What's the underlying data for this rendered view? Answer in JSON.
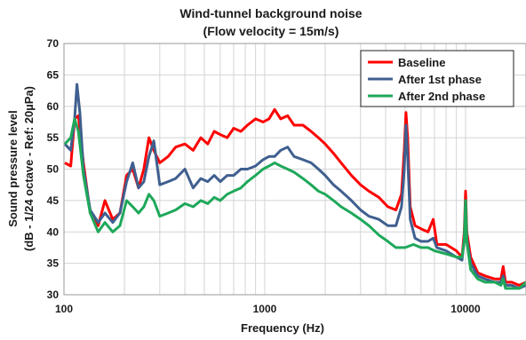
{
  "chart_data": {
    "type": "line",
    "title_lines": [
      "Wind-tunnel background noise",
      "(Flow velocity = 15m/s)"
    ],
    "xlabel": "Frequency (Hz)",
    "ylabel_lines": [
      "Sound pressure level",
      "(dB - 1/24 octave - Ref: 20µPa)"
    ],
    "xscale": "log",
    "xlim": [
      100,
      20000
    ],
    "ylim": [
      30,
      70
    ],
    "yticks": [
      30,
      35,
      40,
      45,
      50,
      55,
      60,
      65,
      70
    ],
    "xticks": [
      100,
      1000,
      10000
    ],
    "xtick_labels": [
      "100",
      "1000",
      "10000"
    ],
    "grid": true,
    "legend_position": "top-right",
    "series": [
      {
        "name": "Baseline",
        "color": "#ff0000",
        "points": [
          [
            101,
            51
          ],
          [
            108,
            50.5
          ],
          [
            113,
            58
          ],
          [
            118,
            58.5
          ],
          [
            125,
            51
          ],
          [
            135,
            43
          ],
          [
            148,
            41
          ],
          [
            160,
            45
          ],
          [
            175,
            42
          ],
          [
            190,
            43
          ],
          [
            205,
            49
          ],
          [
            220,
            50
          ],
          [
            235,
            47
          ],
          [
            250,
            50
          ],
          [
            265,
            55
          ],
          [
            280,
            53
          ],
          [
            300,
            51
          ],
          [
            330,
            52
          ],
          [
            360,
            53.5
          ],
          [
            400,
            54
          ],
          [
            440,
            53
          ],
          [
            480,
            55
          ],
          [
            520,
            54
          ],
          [
            560,
            56
          ],
          [
            600,
            55.5
          ],
          [
            650,
            55
          ],
          [
            700,
            56.5
          ],
          [
            760,
            56
          ],
          [
            820,
            57
          ],
          [
            900,
            58
          ],
          [
            980,
            57.5
          ],
          [
            1050,
            58
          ],
          [
            1120,
            59.5
          ],
          [
            1200,
            58
          ],
          [
            1300,
            58.5
          ],
          [
            1400,
            57
          ],
          [
            1550,
            57
          ],
          [
            1700,
            56
          ],
          [
            1850,
            55
          ],
          [
            2000,
            54
          ],
          [
            2200,
            52.5
          ],
          [
            2400,
            51
          ],
          [
            2700,
            49
          ],
          [
            3000,
            47.5
          ],
          [
            3300,
            46.5
          ],
          [
            3700,
            45.5
          ],
          [
            4100,
            44
          ],
          [
            4500,
            43.5
          ],
          [
            4800,
            46
          ],
          [
            4950,
            53
          ],
          [
            5050,
            59
          ],
          [
            5150,
            55
          ],
          [
            5300,
            44
          ],
          [
            5600,
            41
          ],
          [
            6000,
            40.5
          ],
          [
            6500,
            40
          ],
          [
            6900,
            42
          ],
          [
            7200,
            38
          ],
          [
            8000,
            38
          ],
          [
            9000,
            37
          ],
          [
            9600,
            36
          ],
          [
            9850,
            40
          ],
          [
            10000,
            46.5
          ],
          [
            10150,
            40
          ],
          [
            10600,
            36
          ],
          [
            11500,
            33.5
          ],
          [
            12500,
            33
          ],
          [
            14000,
            32.5
          ],
          [
            15000,
            32.5
          ],
          [
            15400,
            34.5
          ],
          [
            15800,
            32
          ],
          [
            17000,
            32
          ],
          [
            18500,
            31.5
          ],
          [
            20000,
            32
          ]
        ]
      },
      {
        "name": "After 1st phase",
        "color": "#3f5f8f",
        "points": [
          [
            101,
            54
          ],
          [
            108,
            53
          ],
          [
            113,
            58
          ],
          [
            116,
            63.5
          ],
          [
            120,
            59
          ],
          [
            125,
            50
          ],
          [
            135,
            43.5
          ],
          [
            148,
            41.5
          ],
          [
            160,
            43
          ],
          [
            175,
            41.5
          ],
          [
            190,
            43
          ],
          [
            205,
            48
          ],
          [
            220,
            51
          ],
          [
            235,
            47
          ],
          [
            250,
            48
          ],
          [
            265,
            52
          ],
          [
            280,
            54.5
          ],
          [
            300,
            47.5
          ],
          [
            330,
            48
          ],
          [
            360,
            48.5
          ],
          [
            400,
            50
          ],
          [
            440,
            47
          ],
          [
            480,
            48.5
          ],
          [
            520,
            48
          ],
          [
            560,
            49
          ],
          [
            600,
            48
          ],
          [
            650,
            49
          ],
          [
            700,
            49
          ],
          [
            760,
            50
          ],
          [
            820,
            50
          ],
          [
            900,
            50.5
          ],
          [
            980,
            51.5
          ],
          [
            1050,
            52
          ],
          [
            1120,
            52
          ],
          [
            1200,
            53
          ],
          [
            1300,
            53.5
          ],
          [
            1400,
            52
          ],
          [
            1550,
            51.5
          ],
          [
            1700,
            51
          ],
          [
            1850,
            50
          ],
          [
            2000,
            49
          ],
          [
            2200,
            47.5
          ],
          [
            2400,
            46.5
          ],
          [
            2700,
            45
          ],
          [
            3000,
            43.5
          ],
          [
            3300,
            42.5
          ],
          [
            3700,
            42
          ],
          [
            4100,
            41
          ],
          [
            4500,
            41
          ],
          [
            4800,
            44
          ],
          [
            4950,
            50
          ],
          [
            5050,
            57
          ],
          [
            5150,
            52
          ],
          [
            5300,
            42
          ],
          [
            5600,
            39
          ],
          [
            6000,
            38.5
          ],
          [
            6500,
            38.5
          ],
          [
            6900,
            39
          ],
          [
            7200,
            37.5
          ],
          [
            8000,
            37
          ],
          [
            9000,
            36
          ],
          [
            9600,
            35.5
          ],
          [
            9850,
            39
          ],
          [
            10000,
            45
          ],
          [
            10150,
            39
          ],
          [
            10600,
            35
          ],
          [
            11500,
            33
          ],
          [
            12500,
            32.5
          ],
          [
            14000,
            32
          ],
          [
            15000,
            32
          ],
          [
            15400,
            33
          ],
          [
            15800,
            31.5
          ],
          [
            17000,
            31.5
          ],
          [
            18500,
            31
          ],
          [
            20000,
            31.5
          ]
        ]
      },
      {
        "name": "After 2nd phase",
        "color": "#1ea85a",
        "points": [
          [
            101,
            54
          ],
          [
            108,
            55
          ],
          [
            113,
            58
          ],
          [
            118,
            56
          ],
          [
            125,
            49
          ],
          [
            135,
            43
          ],
          [
            148,
            40
          ],
          [
            160,
            41.5
          ],
          [
            175,
            40
          ],
          [
            190,
            41
          ],
          [
            205,
            45
          ],
          [
            220,
            44
          ],
          [
            235,
            43
          ],
          [
            250,
            44
          ],
          [
            265,
            46
          ],
          [
            280,
            45
          ],
          [
            300,
            42.5
          ],
          [
            330,
            43
          ],
          [
            360,
            43.5
          ],
          [
            400,
            44.5
          ],
          [
            440,
            44
          ],
          [
            480,
            45
          ],
          [
            520,
            44.5
          ],
          [
            560,
            45.5
          ],
          [
            600,
            45
          ],
          [
            650,
            46
          ],
          [
            700,
            46.5
          ],
          [
            760,
            47
          ],
          [
            820,
            48
          ],
          [
            900,
            49
          ],
          [
            980,
            50
          ],
          [
            1050,
            50.5
          ],
          [
            1120,
            51
          ],
          [
            1200,
            50.5
          ],
          [
            1300,
            50
          ],
          [
            1400,
            49.5
          ],
          [
            1550,
            48.5
          ],
          [
            1700,
            47.5
          ],
          [
            1850,
            46.5
          ],
          [
            2000,
            46
          ],
          [
            2200,
            45
          ],
          [
            2400,
            44
          ],
          [
            2700,
            43
          ],
          [
            3000,
            42
          ],
          [
            3300,
            41
          ],
          [
            3700,
            39.5
          ],
          [
            4100,
            38.5
          ],
          [
            4500,
            37.5
          ],
          [
            5000,
            37.5
          ],
          [
            5500,
            38
          ],
          [
            6000,
            37.5
          ],
          [
            6500,
            37.5
          ],
          [
            7000,
            37
          ],
          [
            8000,
            36.5
          ],
          [
            9000,
            36
          ],
          [
            9600,
            36
          ],
          [
            9850,
            38.5
          ],
          [
            10000,
            45
          ],
          [
            10150,
            38.5
          ],
          [
            10600,
            34
          ],
          [
            11500,
            32.5
          ],
          [
            12500,
            32
          ],
          [
            14000,
            32
          ],
          [
            15000,
            31.5
          ],
          [
            15400,
            32.5
          ],
          [
            15800,
            31
          ],
          [
            17000,
            31
          ],
          [
            18500,
            31
          ],
          [
            20000,
            32
          ]
        ]
      }
    ]
  }
}
